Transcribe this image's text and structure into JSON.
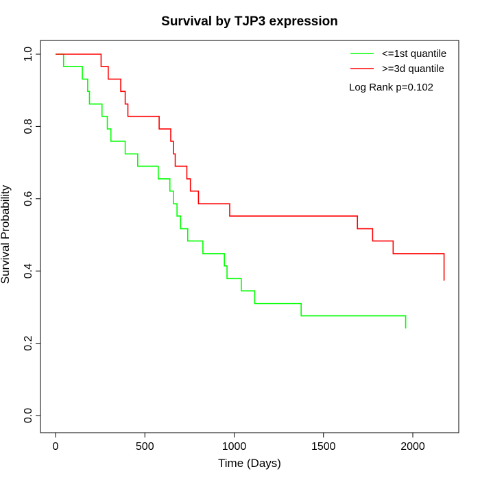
{
  "chart_data": {
    "type": "line",
    "subtype": "kaplan-meier step curve",
    "title": "Survival by TJP3 expression",
    "xlabel": "Time (Days)",
    "ylabel": "Survival Probability",
    "xlim": [
      0,
      2250
    ],
    "ylim": [
      0,
      1.0
    ],
    "xticks": [
      0,
      500,
      1000,
      1500,
      2000
    ],
    "yticks": [
      0.0,
      0.2,
      0.4,
      0.6,
      0.8,
      1.0
    ],
    "xtick_labels": [
      "0",
      "500",
      "1000",
      "1500",
      "2000"
    ],
    "ytick_labels": [
      "0.0",
      "0.2",
      "0.4",
      "0.6",
      "0.8",
      "1.0"
    ],
    "grid": false,
    "legend_position": "top-right",
    "annotation": "Log Rank p=0.102",
    "series": [
      {
        "name": "<=1st quantile",
        "color": "#00ff00",
        "x": [
          0,
          45,
          150,
          180,
          190,
          260,
          290,
          310,
          390,
          460,
          575,
          640,
          660,
          680,
          700,
          740,
          825,
          945,
          960,
          1040,
          1115,
          1375,
          1960
        ],
        "y": [
          1.0,
          0.966,
          0.931,
          0.897,
          0.862,
          0.828,
          0.793,
          0.759,
          0.724,
          0.69,
          0.655,
          0.621,
          0.586,
          0.552,
          0.517,
          0.483,
          0.448,
          0.414,
          0.379,
          0.345,
          0.31,
          0.276,
          0.241
        ]
      },
      {
        "name": ">=3d quantile",
        "color": "#ff0000",
        "x": [
          0,
          190,
          255,
          295,
          365,
          390,
          405,
          580,
          645,
          660,
          670,
          735,
          755,
          800,
          975,
          1690,
          1775,
          1890,
          2175
        ],
        "y": [
          1.0,
          1.0,
          0.966,
          0.931,
          0.897,
          0.862,
          0.828,
          0.793,
          0.759,
          0.724,
          0.69,
          0.655,
          0.621,
          0.586,
          0.552,
          0.517,
          0.483,
          0.448,
          0.373
        ]
      }
    ]
  }
}
